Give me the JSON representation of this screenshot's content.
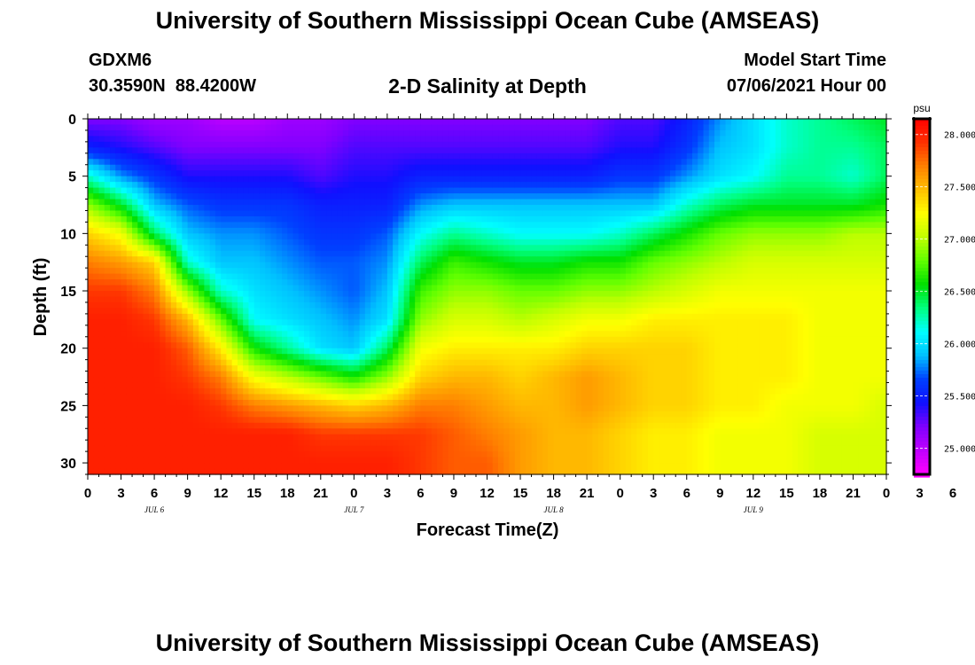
{
  "header": {
    "title": "University of Southern Mississippi Ocean Cube (AMSEAS)",
    "station_id": "GDXM6",
    "location": "30.3590N  88.4200W",
    "subtitle": "2-D Salinity at Depth",
    "model_start_label": "Model Start Time",
    "model_start_value": "07/06/2021 Hour 00"
  },
  "footer": {
    "title": "University of Southern Mississippi Ocean Cube (AMSEAS)"
  },
  "chart_data": {
    "type": "heatmap",
    "title": "2-D Salinity at Depth",
    "xlabel": "Forecast Time(Z)",
    "ylabel": "Depth (ft)",
    "x_range_hours": [
      0,
      72
    ],
    "ylim": [
      31,
      0
    ],
    "x_tick_labels": [
      "0",
      "3",
      "6",
      "9",
      "12",
      "15",
      "18",
      "21",
      "0",
      "3",
      "6",
      "9",
      "12",
      "15",
      "18",
      "21",
      "0",
      "3",
      "6",
      "9",
      "12",
      "15",
      "18",
      "21",
      "0",
      "3",
      "6",
      "9",
      "12",
      "15",
      "18",
      "21",
      "0"
    ],
    "date_labels": [
      {
        "text": "JUL 6",
        "hour": 6
      },
      {
        "text": "JUL 7",
        "hour": 24
      },
      {
        "text": "JUL 8",
        "hour": 42
      },
      {
        "text": "JUL 9",
        "hour": 60
      }
    ],
    "y_ticks": [
      0,
      5,
      10,
      15,
      20,
      25,
      30
    ],
    "units": "psu",
    "colorbar": {
      "min": 24.75,
      "max": 28.15,
      "ticks": [
        "25.000",
        "25.500",
        "26.000",
        "26.500",
        "27.000",
        "27.500",
        "28.000"
      ],
      "colors": [
        "#ff00ff",
        "#c000ff",
        "#8000ff",
        "#1010ff",
        "#0040ff",
        "#00c0ff",
        "#00ffff",
        "#00ff80",
        "#00e000",
        "#60ff00",
        "#c0ff00",
        "#ffff00",
        "#ffc000",
        "#ff8000",
        "#ff3000",
        "#ff0000"
      ]
    },
    "profile_hours": [
      0,
      3,
      6,
      9,
      12,
      15,
      18,
      21,
      24,
      27,
      30,
      33,
      36,
      39,
      42,
      45,
      48,
      51,
      54,
      57,
      60,
      63,
      66,
      69,
      72
    ],
    "profile_depths_ft": [
      0,
      2.5,
      5,
      7.5,
      10,
      12.5,
      15,
      17.5,
      20,
      22.5,
      25,
      27.5,
      30,
      31
    ],
    "salinity_psu": [
      [
        25.2,
        25.5,
        26.2,
        26.9,
        27.4,
        27.7,
        27.9,
        28.0,
        28.0,
        28.0,
        28.0,
        28.0,
        28.0,
        28.0
      ],
      [
        25.2,
        25.4,
        25.8,
        26.5,
        27.2,
        27.6,
        27.9,
        28.0,
        28.0,
        28.0,
        28.0,
        28.0,
        28.0,
        28.0
      ],
      [
        25.1,
        25.3,
        25.6,
        25.9,
        26.4,
        27.4,
        27.7,
        27.9,
        28.0,
        28.0,
        28.0,
        28.0,
        28.0,
        28.0
      ],
      [
        25.1,
        25.2,
        25.4,
        25.7,
        25.9,
        26.2,
        26.9,
        27.5,
        27.8,
        27.9,
        28.0,
        28.0,
        28.0,
        28.0
      ],
      [
        25.0,
        25.2,
        25.4,
        25.6,
        25.8,
        25.9,
        26.2,
        26.8,
        27.3,
        27.7,
        27.9,
        28.0,
        28.0,
        28.0
      ],
      [
        25.0,
        25.2,
        25.4,
        25.6,
        25.8,
        25.9,
        26.0,
        26.1,
        26.6,
        27.2,
        27.7,
        28.0,
        28.0,
        28.0
      ],
      [
        25.1,
        25.2,
        25.4,
        25.6,
        25.7,
        25.8,
        25.9,
        26.0,
        26.3,
        27.0,
        27.6,
        28.0,
        28.0,
        28.0
      ],
      [
        25.1,
        25.2,
        25.3,
        25.5,
        25.6,
        25.7,
        25.8,
        25.9,
        26.0,
        26.8,
        27.5,
        27.9,
        28.0,
        28.0
      ],
      [
        25.2,
        25.3,
        25.4,
        25.5,
        25.6,
        25.7,
        25.7,
        25.8,
        25.9,
        26.6,
        27.4,
        27.9,
        28.0,
        28.0
      ],
      [
        25.2,
        25.3,
        25.4,
        25.5,
        25.7,
        25.8,
        25.9,
        26.0,
        26.4,
        26.9,
        27.5,
        27.9,
        28.0,
        28.0
      ],
      [
        25.2,
        25.3,
        25.5,
        25.8,
        26.1,
        26.4,
        26.7,
        26.9,
        27.2,
        27.4,
        27.7,
        27.9,
        27.9,
        27.9
      ],
      [
        25.2,
        25.3,
        25.5,
        25.9,
        26.3,
        26.7,
        26.9,
        27.1,
        27.3,
        27.5,
        27.7,
        27.8,
        27.8,
        27.8
      ],
      [
        25.2,
        25.3,
        25.5,
        25.9,
        26.2,
        26.6,
        26.9,
        27.1,
        27.3,
        27.5,
        27.6,
        27.7,
        27.8,
        27.8
      ],
      [
        25.2,
        25.3,
        25.5,
        25.9,
        26.1,
        26.5,
        26.8,
        27.0,
        27.3,
        27.4,
        27.5,
        27.6,
        27.6,
        27.6
      ],
      [
        25.2,
        25.3,
        25.5,
        25.9,
        26.1,
        26.5,
        26.8,
        27.1,
        27.3,
        27.5,
        27.5,
        27.5,
        27.5,
        27.5
      ],
      [
        25.2,
        25.3,
        25.5,
        25.9,
        26.1,
        26.6,
        26.9,
        27.2,
        27.4,
        27.6,
        27.6,
        27.5,
        27.5,
        27.5
      ],
      [
        25.3,
        25.4,
        25.6,
        25.9,
        26.2,
        26.6,
        26.9,
        27.2,
        27.4,
        27.5,
        27.5,
        27.4,
        27.4,
        27.4
      ],
      [
        25.3,
        25.4,
        25.6,
        25.9,
        26.4,
        26.8,
        27.0,
        27.3,
        27.4,
        27.4,
        27.4,
        27.3,
        27.3,
        27.3
      ],
      [
        25.5,
        25.6,
        25.8,
        26.2,
        26.6,
        26.9,
        27.1,
        27.3,
        27.4,
        27.4,
        27.4,
        27.3,
        27.3,
        27.3
      ],
      [
        25.8,
        25.9,
        26.0,
        26.4,
        26.8,
        27.0,
        27.2,
        27.3,
        27.3,
        27.3,
        27.3,
        27.2,
        27.2,
        27.2
      ],
      [
        26.0,
        26.0,
        26.1,
        26.5,
        26.9,
        27.1,
        27.2,
        27.3,
        27.3,
        27.3,
        27.3,
        27.2,
        27.2,
        27.2
      ],
      [
        26.2,
        26.2,
        26.3,
        26.5,
        26.9,
        27.1,
        27.2,
        27.3,
        27.3,
        27.3,
        27.2,
        27.2,
        27.2,
        27.2
      ],
      [
        26.3,
        26.3,
        26.3,
        26.5,
        26.9,
        27.1,
        27.2,
        27.2,
        27.2,
        27.2,
        27.2,
        27.1,
        27.1,
        27.1
      ],
      [
        26.4,
        26.3,
        26.2,
        26.5,
        27.0,
        27.1,
        27.2,
        27.2,
        27.2,
        27.2,
        27.2,
        27.1,
        27.1,
        27.1
      ],
      [
        26.5,
        26.4,
        26.4,
        26.6,
        27.0,
        27.1,
        27.2,
        27.2,
        27.2,
        27.2,
        27.1,
        27.1,
        27.1,
        27.1
      ]
    ]
  }
}
